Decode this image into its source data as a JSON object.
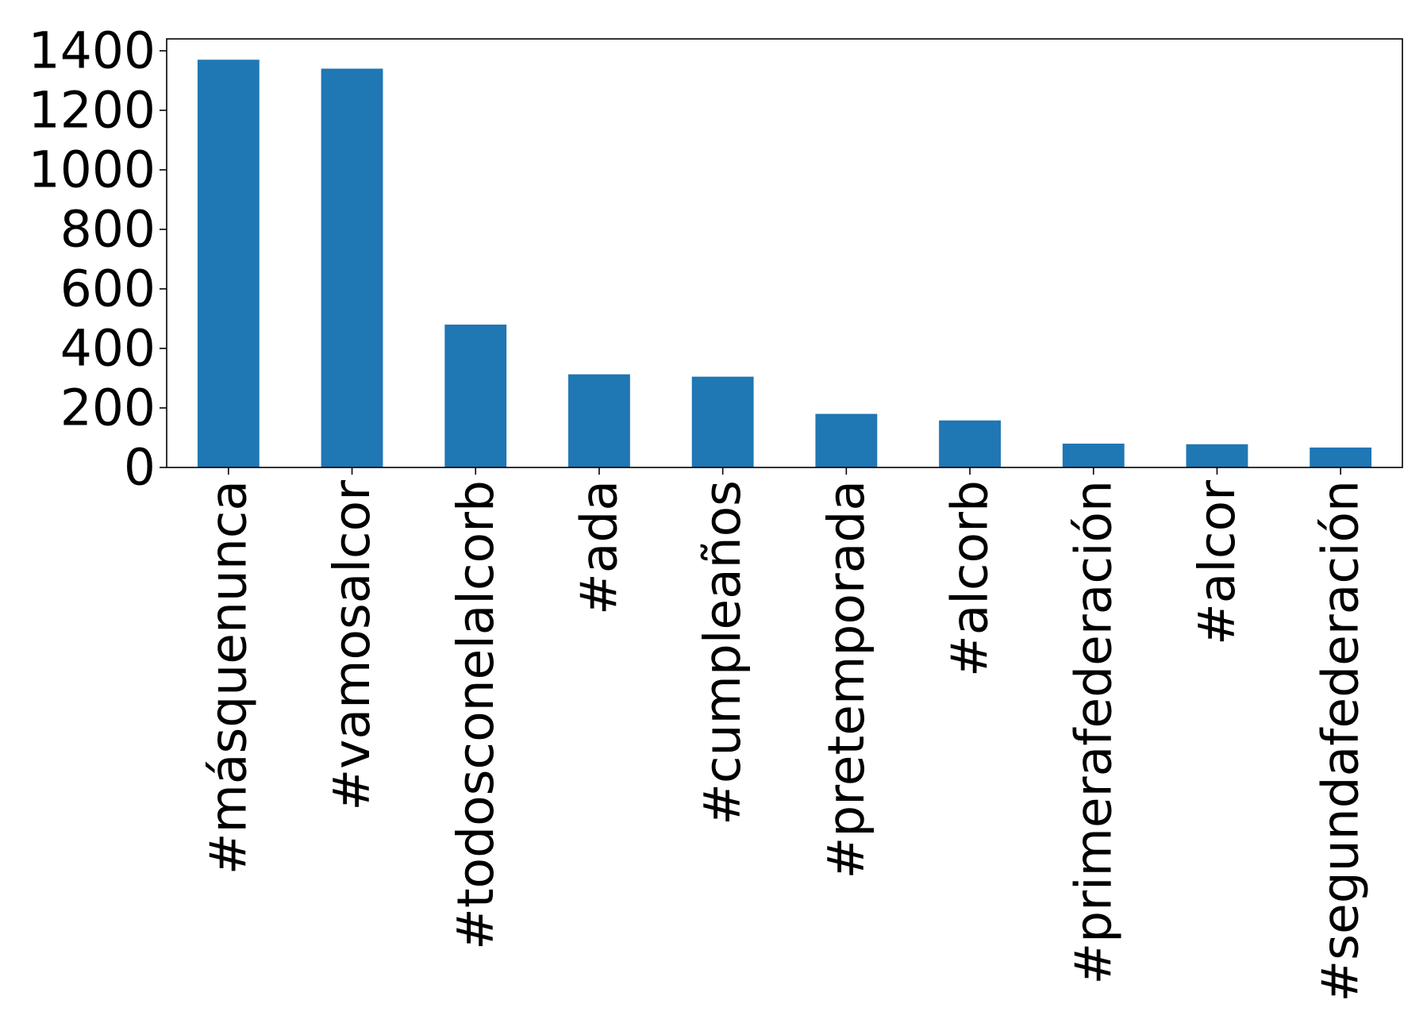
{
  "chart_data": {
    "type": "bar",
    "title": "",
    "xlabel": "",
    "ylabel": "",
    "categories": [
      "#másquenunca",
      "#vamosalcor",
      "#todosconelalcorb",
      "#ada",
      "#cumpleaños",
      "#pretemporada",
      "#alcorb",
      "#primerafederación",
      "#alcor",
      "#segundafederación"
    ],
    "values": [
      1370,
      1340,
      480,
      313,
      305,
      180,
      158,
      80,
      78,
      67
    ],
    "ylim": [
      0,
      1440
    ],
    "yticks": [
      0,
      200,
      400,
      600,
      800,
      1000,
      1200,
      1400
    ],
    "ytick_labels": [
      "0",
      "200",
      "400",
      "600",
      "800",
      "1000",
      "1200",
      "1400"
    ],
    "grid": false,
    "legend": "none",
    "bar_color": "#1f77b4"
  }
}
